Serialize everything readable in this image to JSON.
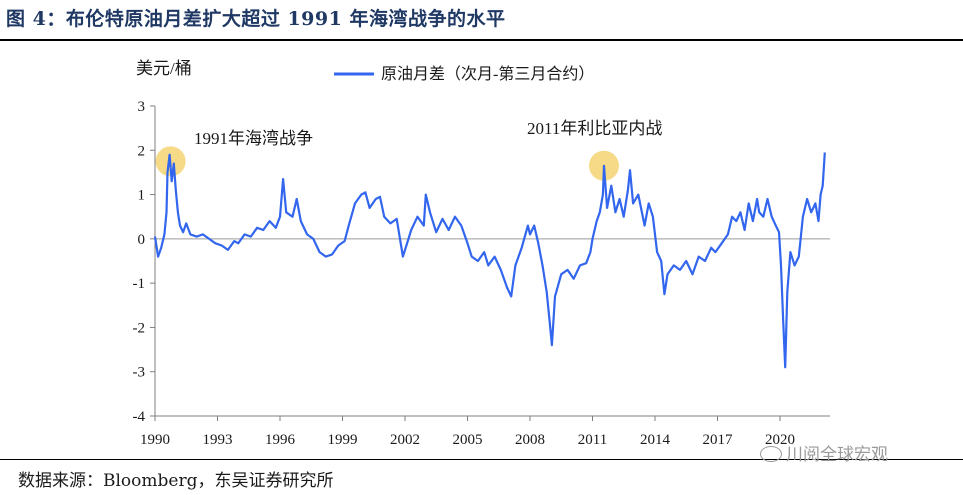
{
  "figure": {
    "title": "图 4：布伦特原油月差扩大超过 1991 年海湾战争的水平",
    "source": "数据来源：Bloomberg，东吴证券研究所",
    "watermark": "川阅全球宏观"
  },
  "chart_data": {
    "type": "line",
    "title": "图 4：布伦特原油月差扩大超过 1991 年海湾战争的水平",
    "ylabel": "美元/桶",
    "xlabel": "",
    "ylim": [
      -4,
      3
    ],
    "xlim": [
      1990,
      2022.4
    ],
    "yticks": [
      3,
      2,
      1,
      0,
      -1,
      -2,
      -3,
      -4
    ],
    "xticks": [
      1990,
      1993,
      1996,
      1999,
      2002,
      2005,
      2008,
      2011,
      2014,
      2017,
      2020
    ],
    "xtick_labels": [
      "1990",
      "1993",
      "1996",
      "1999",
      "2002",
      "2005",
      "2008",
      "2011",
      "2014",
      "2017",
      "2020"
    ],
    "grid": false,
    "legend": "top-center",
    "series": [
      {
        "name": "原油月差（次月-第三月合约）",
        "color": "#3366ee",
        "points": [
          [
            1990.0,
            0.05
          ],
          [
            1990.15,
            -0.4
          ],
          [
            1990.3,
            -0.2
          ],
          [
            1990.45,
            0.1
          ],
          [
            1990.55,
            0.6
          ],
          [
            1990.6,
            1.5
          ],
          [
            1990.7,
            1.9
          ],
          [
            1990.8,
            1.3
          ],
          [
            1990.9,
            1.7
          ],
          [
            1991.0,
            1.1
          ],
          [
            1991.1,
            0.6
          ],
          [
            1991.2,
            0.3
          ],
          [
            1991.35,
            0.15
          ],
          [
            1991.5,
            0.35
          ],
          [
            1991.7,
            0.1
          ],
          [
            1992.0,
            0.05
          ],
          [
            1992.3,
            0.1
          ],
          [
            1992.6,
            0.0
          ],
          [
            1992.9,
            -0.1
          ],
          [
            1993.2,
            -0.15
          ],
          [
            1993.5,
            -0.25
          ],
          [
            1993.8,
            -0.05
          ],
          [
            1994.0,
            -0.1
          ],
          [
            1994.3,
            0.1
          ],
          [
            1994.6,
            0.05
          ],
          [
            1994.9,
            0.25
          ],
          [
            1995.2,
            0.2
          ],
          [
            1995.5,
            0.4
          ],
          [
            1995.8,
            0.25
          ],
          [
            1996.0,
            0.5
          ],
          [
            1996.15,
            1.35
          ],
          [
            1996.3,
            0.6
          ],
          [
            1996.6,
            0.5
          ],
          [
            1996.8,
            0.9
          ],
          [
            1997.0,
            0.4
          ],
          [
            1997.3,
            0.1
          ],
          [
            1997.6,
            0.0
          ],
          [
            1997.9,
            -0.3
          ],
          [
            1998.2,
            -0.4
          ],
          [
            1998.5,
            -0.35
          ],
          [
            1998.8,
            -0.15
          ],
          [
            1999.1,
            -0.05
          ],
          [
            1999.3,
            0.3
          ],
          [
            1999.6,
            0.8
          ],
          [
            1999.9,
            1.0
          ],
          [
            2000.1,
            1.05
          ],
          [
            2000.3,
            0.7
          ],
          [
            2000.6,
            0.9
          ],
          [
            2000.8,
            0.95
          ],
          [
            2001.0,
            0.5
          ],
          [
            2001.3,
            0.35
          ],
          [
            2001.6,
            0.45
          ],
          [
            2001.9,
            -0.4
          ],
          [
            2002.1,
            -0.1
          ],
          [
            2002.3,
            0.2
          ],
          [
            2002.6,
            0.5
          ],
          [
            2002.9,
            0.3
          ],
          [
            2003.0,
            1.0
          ],
          [
            2003.2,
            0.6
          ],
          [
            2003.5,
            0.15
          ],
          [
            2003.8,
            0.45
          ],
          [
            2004.1,
            0.2
          ],
          [
            2004.4,
            0.5
          ],
          [
            2004.7,
            0.3
          ],
          [
            2005.0,
            -0.1
          ],
          [
            2005.2,
            -0.4
          ],
          [
            2005.5,
            -0.5
          ],
          [
            2005.8,
            -0.3
          ],
          [
            2006.0,
            -0.6
          ],
          [
            2006.3,
            -0.4
          ],
          [
            2006.6,
            -0.7
          ],
          [
            2006.9,
            -1.1
          ],
          [
            2007.1,
            -1.3
          ],
          [
            2007.3,
            -0.6
          ],
          [
            2007.6,
            -0.2
          ],
          [
            2007.9,
            0.3
          ],
          [
            2008.0,
            0.1
          ],
          [
            2008.2,
            0.3
          ],
          [
            2008.4,
            -0.1
          ],
          [
            2008.6,
            -0.6
          ],
          [
            2008.8,
            -1.2
          ],
          [
            2008.95,
            -1.9
          ],
          [
            2009.05,
            -2.4
          ],
          [
            2009.2,
            -1.3
          ],
          [
            2009.5,
            -0.8
          ],
          [
            2009.8,
            -0.7
          ],
          [
            2010.1,
            -0.9
          ],
          [
            2010.4,
            -0.6
          ],
          [
            2010.7,
            -0.55
          ],
          [
            2010.9,
            -0.3
          ],
          [
            2011.0,
            0.0
          ],
          [
            2011.2,
            0.4
          ],
          [
            2011.35,
            0.6
          ],
          [
            2011.5,
            1.0
          ],
          [
            2011.55,
            1.65
          ],
          [
            2011.7,
            0.7
          ],
          [
            2011.9,
            1.2
          ],
          [
            2012.1,
            0.6
          ],
          [
            2012.3,
            0.9
          ],
          [
            2012.5,
            0.5
          ],
          [
            2012.7,
            1.1
          ],
          [
            2012.8,
            1.55
          ],
          [
            2012.95,
            0.8
          ],
          [
            2013.2,
            1.0
          ],
          [
            2013.5,
            0.3
          ],
          [
            2013.7,
            0.8
          ],
          [
            2013.9,
            0.5
          ],
          [
            2014.1,
            -0.3
          ],
          [
            2014.3,
            -0.5
          ],
          [
            2014.45,
            -1.25
          ],
          [
            2014.6,
            -0.8
          ],
          [
            2014.9,
            -0.6
          ],
          [
            2015.2,
            -0.7
          ],
          [
            2015.5,
            -0.5
          ],
          [
            2015.8,
            -0.8
          ],
          [
            2016.1,
            -0.4
          ],
          [
            2016.4,
            -0.5
          ],
          [
            2016.7,
            -0.2
          ],
          [
            2016.9,
            -0.3
          ],
          [
            2017.2,
            -0.1
          ],
          [
            2017.5,
            0.1
          ],
          [
            2017.7,
            0.5
          ],
          [
            2017.9,
            0.4
          ],
          [
            2018.1,
            0.6
          ],
          [
            2018.3,
            0.2
          ],
          [
            2018.5,
            0.8
          ],
          [
            2018.7,
            0.4
          ],
          [
            2018.9,
            0.9
          ],
          [
            2019.0,
            0.6
          ],
          [
            2019.2,
            0.5
          ],
          [
            2019.4,
            0.9
          ],
          [
            2019.6,
            0.5
          ],
          [
            2019.8,
            0.3
          ],
          [
            2019.95,
            0.15
          ],
          [
            2020.05,
            -0.6
          ],
          [
            2020.15,
            -1.8
          ],
          [
            2020.25,
            -2.9
          ],
          [
            2020.35,
            -1.2
          ],
          [
            2020.5,
            -0.3
          ],
          [
            2020.7,
            -0.6
          ],
          [
            2020.9,
            -0.4
          ],
          [
            2021.1,
            0.5
          ],
          [
            2021.3,
            0.9
          ],
          [
            2021.5,
            0.6
          ],
          [
            2021.7,
            0.8
          ],
          [
            2021.85,
            0.4
          ],
          [
            2021.95,
            1.0
          ],
          [
            2022.05,
            1.2
          ],
          [
            2022.15,
            1.95
          ]
        ]
      }
    ],
    "annotations": [
      {
        "text": "1991年海湾战争",
        "x": 1990.75,
        "y": 1.75
      },
      {
        "text": "2011年利比亚内战",
        "x": 2011.55,
        "y": 1.65
      }
    ],
    "highlight_color": "#f5d473"
  }
}
